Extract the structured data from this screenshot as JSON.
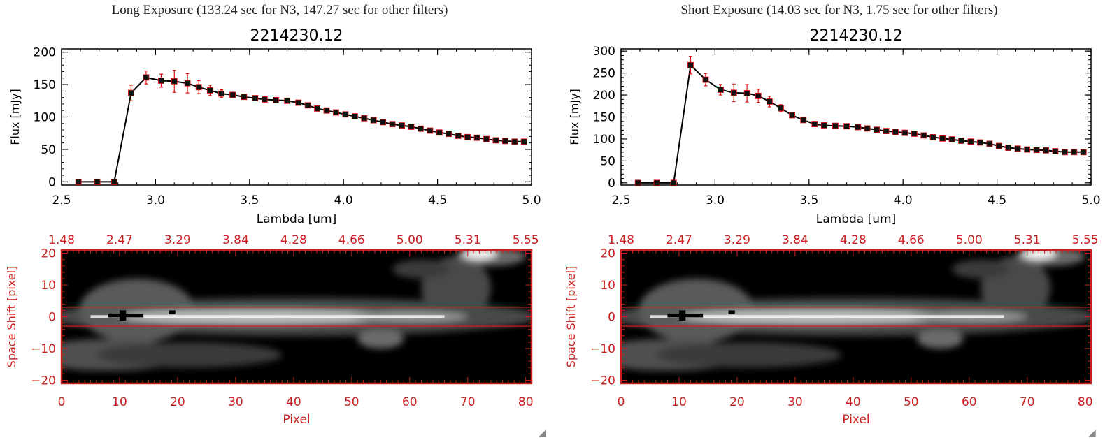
{
  "panels": [
    {
      "title": "Long Exposure (133.24 sec for N3, 147.27 sec for other filters)",
      "chart_data": {
        "type": "line",
        "title": "2214230.12",
        "xlabel": "Lambda [um]",
        "ylabel": "Flux [mJy]",
        "xlim": [
          2.5,
          5.0
        ],
        "ylim": [
          -5,
          205
        ],
        "xticks": [
          2.5,
          3.0,
          3.5,
          4.0,
          4.5,
          5.0
        ],
        "xtick_labels": [
          "2.5",
          "3.0",
          "3.5",
          "4.0",
          "4.5",
          "5.0"
        ],
        "yticks": [
          0,
          50,
          100,
          150,
          200
        ],
        "ytick_labels": [
          "0",
          "50",
          "100",
          "150",
          "200"
        ],
        "x": [
          2.59,
          2.69,
          2.78,
          2.87,
          2.95,
          3.03,
          3.1,
          3.17,
          3.23,
          3.29,
          3.35,
          3.41,
          3.47,
          3.53,
          3.58,
          3.64,
          3.7,
          3.76,
          3.81,
          3.86,
          3.91,
          3.96,
          4.01,
          4.06,
          4.11,
          4.16,
          4.21,
          4.26,
          4.31,
          4.36,
          4.41,
          4.46,
          4.51,
          4.56,
          4.61,
          4.66,
          4.71,
          4.76,
          4.81,
          4.86,
          4.91,
          4.96
        ],
        "y": [
          0,
          0,
          0,
          137,
          161,
          156,
          155,
          152,
          146,
          141,
          136,
          134,
          131,
          129,
          127,
          126,
          125,
          122,
          118,
          113,
          110,
          107,
          104,
          101,
          98,
          95,
          92,
          89,
          87,
          85,
          82,
          79,
          76,
          74,
          71,
          69,
          68,
          66,
          64,
          63,
          62,
          62
        ],
        "err": [
          0,
          0,
          0,
          12,
          10,
          10,
          17,
          15,
          10,
          8,
          6,
          4,
          3,
          3,
          3,
          3,
          3,
          3,
          3,
          3,
          3,
          3,
          2,
          2,
          2,
          2,
          2,
          2,
          2,
          2,
          2,
          2,
          2,
          2,
          2,
          2,
          2,
          2,
          2,
          2,
          2,
          2
        ]
      },
      "spectrum_image": {
        "type": "heatmap",
        "xlabel": "Pixel",
        "ylabel": "Space Shift [pixel]",
        "xlim": [
          0,
          81
        ],
        "ylim": [
          -21,
          21
        ],
        "xticks": [
          0,
          10,
          20,
          30,
          40,
          50,
          60,
          70,
          80
        ],
        "xtick_labels": [
          "0",
          "10",
          "20",
          "30",
          "40",
          "50",
          "60",
          "70",
          "80"
        ],
        "yticks": [
          -20,
          -10,
          0,
          10,
          20
        ],
        "ytick_labels": [
          "−20",
          "−10",
          "0",
          "10",
          "20"
        ],
        "top_tick_labels": [
          "1.48",
          "2.47",
          "3.29",
          "3.84",
          "4.28",
          "4.66",
          "5.00",
          "5.31",
          "5.55"
        ],
        "aperture": [
          -3,
          3
        ],
        "axis_color": "#cc2020"
      }
    },
    {
      "title": "Short Exposure (14.03 sec for N3, 1.75 sec for other filters)",
      "chart_data": {
        "type": "line",
        "title": "2214230.12",
        "xlabel": "Lambda [um]",
        "ylabel": "Flux [mJy]",
        "xlim": [
          2.5,
          5.0
        ],
        "ylim": [
          -5,
          305
        ],
        "xticks": [
          2.5,
          3.0,
          3.5,
          4.0,
          4.5,
          5.0
        ],
        "xtick_labels": [
          "2.5",
          "3.0",
          "3.5",
          "4.0",
          "4.5",
          "5.0"
        ],
        "yticks": [
          0,
          50,
          100,
          150,
          200,
          250,
          300
        ],
        "ytick_labels": [
          "0",
          "50",
          "100",
          "150",
          "200",
          "250",
          "300"
        ],
        "x": [
          2.59,
          2.69,
          2.78,
          2.87,
          2.95,
          3.03,
          3.1,
          3.17,
          3.23,
          3.29,
          3.35,
          3.41,
          3.47,
          3.53,
          3.58,
          3.64,
          3.7,
          3.76,
          3.81,
          3.86,
          3.91,
          3.96,
          4.01,
          4.06,
          4.11,
          4.16,
          4.21,
          4.26,
          4.31,
          4.36,
          4.41,
          4.46,
          4.51,
          4.56,
          4.61,
          4.66,
          4.71,
          4.76,
          4.81,
          4.86,
          4.91,
          4.96
        ],
        "y": [
          0,
          0,
          0,
          268,
          235,
          212,
          205,
          204,
          198,
          185,
          170,
          154,
          143,
          134,
          131,
          130,
          129,
          127,
          124,
          121,
          118,
          116,
          114,
          112,
          108,
          104,
          101,
          99,
          96,
          94,
          92,
          89,
          84,
          80,
          78,
          76,
          75,
          74,
          72,
          70,
          70,
          70
        ],
        "err": [
          0,
          0,
          0,
          20,
          14,
          12,
          20,
          20,
          15,
          12,
          8,
          4,
          3,
          3,
          3,
          3,
          3,
          3,
          3,
          3,
          3,
          3,
          3,
          3,
          3,
          3,
          3,
          3,
          3,
          3,
          3,
          3,
          3,
          3,
          3,
          3,
          3,
          3,
          3,
          3,
          3,
          3
        ]
      },
      "spectrum_image": {
        "type": "heatmap",
        "xlabel": "Pixel",
        "ylabel": "Space Shift [pixel]",
        "xlim": [
          0,
          81
        ],
        "ylim": [
          -21,
          21
        ],
        "xticks": [
          0,
          10,
          20,
          30,
          40,
          50,
          60,
          70,
          80
        ],
        "xtick_labels": [
          "0",
          "10",
          "20",
          "30",
          "40",
          "50",
          "60",
          "70",
          "80"
        ],
        "yticks": [
          -20,
          -10,
          0,
          10,
          20
        ],
        "ytick_labels": [
          "−20",
          "−10",
          "0",
          "10",
          "20"
        ],
        "top_tick_labels": [
          "1.48",
          "2.47",
          "3.29",
          "3.84",
          "4.28",
          "4.66",
          "5.00",
          "5.31",
          "5.55"
        ],
        "aperture": [
          -3,
          3
        ],
        "axis_color": "#cc2020"
      }
    }
  ],
  "colors": {
    "line": "#000000",
    "marker": "#111111",
    "errorbar": "#dd1111",
    "image_axis": "#cc2020",
    "aperture_line": "#cc2020"
  },
  "icons": {
    "resize": "resize-grip-icon"
  },
  "resize_glyph": "◢"
}
